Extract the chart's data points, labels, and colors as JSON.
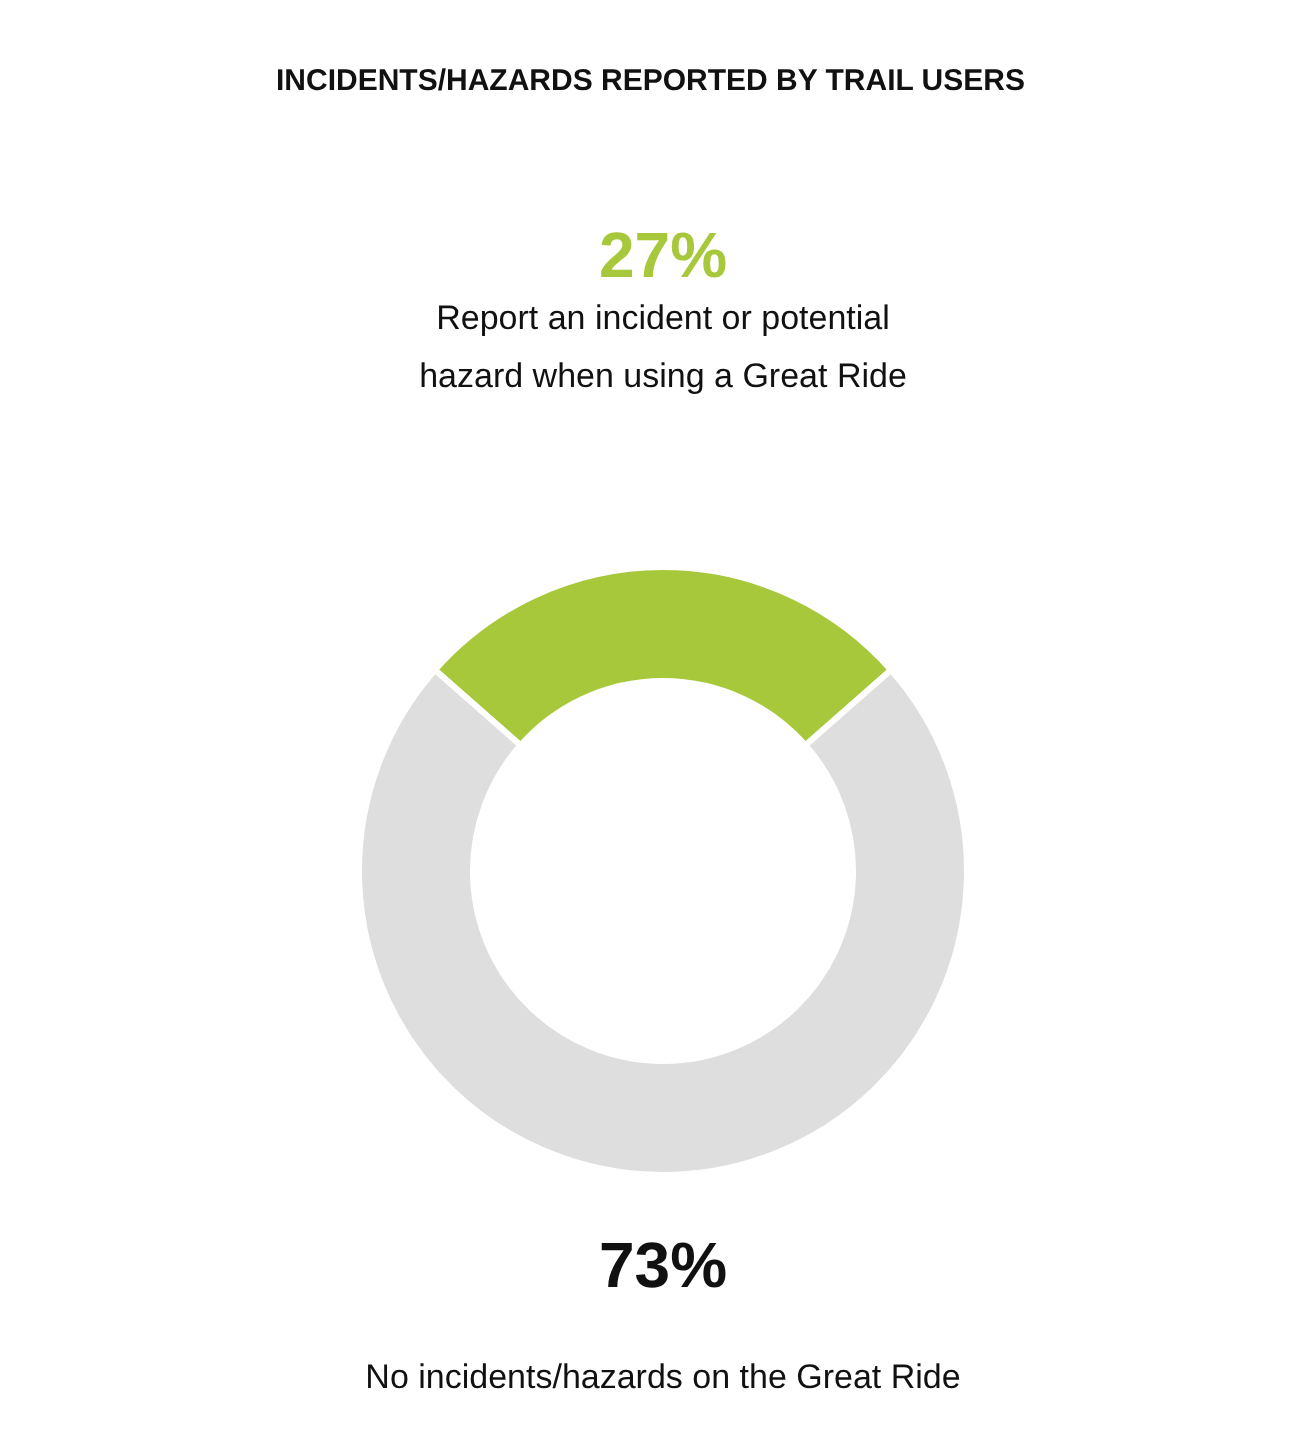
{
  "chart_data": {
    "type": "donut",
    "title": "INCIDENTS/HAZARDS REPORTED BY TRAIL USERS",
    "categories": [
      "Report an incident or potential\nhazard when using a Great Ride",
      "No incidents/hazards on the Great Ride"
    ],
    "values": [
      27,
      73
    ],
    "colors": [
      "#a7c83a",
      "#dedede"
    ],
    "value_labels": [
      "27%",
      "73%"
    ]
  }
}
